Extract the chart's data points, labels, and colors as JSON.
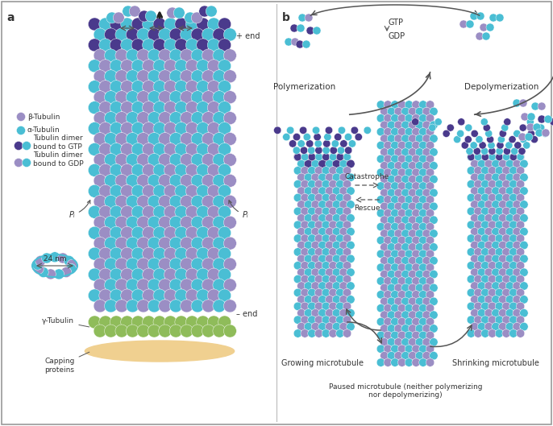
{
  "alpha_tubulin_color": "#4ABED4",
  "beta_tubulin_color": "#9B8EC4",
  "gamma_tubulin_color": "#8FBC5A",
  "gtp_dimer_dark": "#4A3A8C",
  "capping_color": "#F0D090",
  "bg_color": "#FFFFFF",
  "text_color": "#333333",
  "arrow_color": "#555555",
  "title_a": "a",
  "title_b": "b",
  "legend_beta": "β-Tubulin",
  "legend_alpha": "α-Tubulin",
  "legend_gtp": "Tubulin dimer\nbound to GTP",
  "legend_gdp": "Tubulin dimer\nbound to GDP",
  "label_24nm": "24 nm",
  "label_plus_end": "+ end",
  "label_minus_end": "– end",
  "label_gamma": "γ-Tubulin",
  "label_capping": "Capping\nproteins",
  "label_pi": "Pᵢ",
  "label_polymerization": "Polymerization",
  "label_depolymerization": "Depolymerization",
  "label_catastrophe": "Catastrophe",
  "label_rescue": "Rescue",
  "label_gtp": "GTP",
  "label_gdp": "GDP",
  "label_growing": "Growing microtubule",
  "label_paused": "Paused microtubule (neither polymerizing\nnor depolymerizing)",
  "label_shrinking": "Shrinking microtubule"
}
